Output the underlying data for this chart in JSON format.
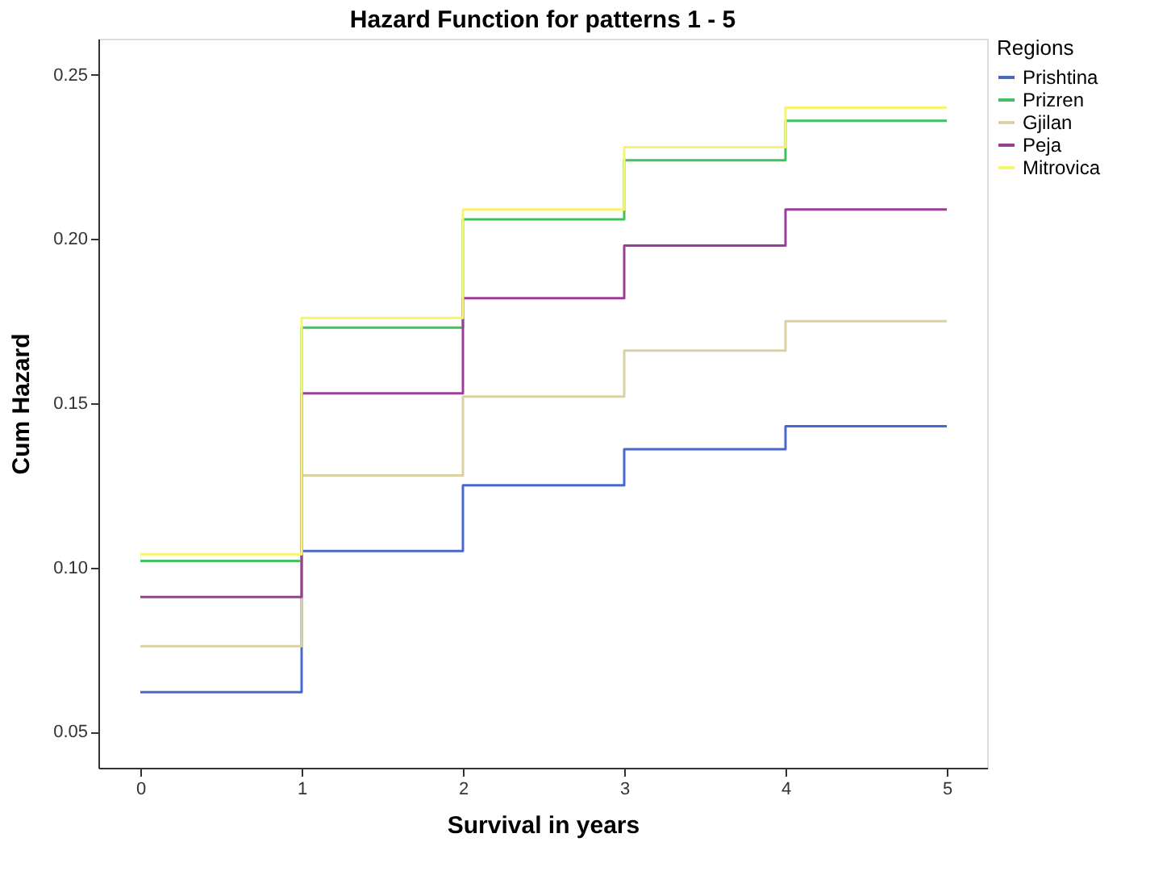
{
  "chart_data": {
    "type": "step",
    "title": "Hazard Function for patterns 1 - 5",
    "xlabel": "Survival in years",
    "ylabel": "Cum Hazard",
    "legend_title": "Regions",
    "x": [
      0,
      1,
      2,
      3,
      4,
      5
    ],
    "series": [
      {
        "name": "Prishtina",
        "color": "#4a68cc",
        "values": [
          0.062,
          0.105,
          0.125,
          0.136,
          0.143,
          0.143
        ]
      },
      {
        "name": "Prizren",
        "color": "#45c060",
        "values": [
          0.102,
          0.173,
          0.206,
          0.224,
          0.236,
          0.236
        ]
      },
      {
        "name": "Gjilan",
        "color": "#d9d3a3",
        "values": [
          0.076,
          0.128,
          0.152,
          0.166,
          0.175,
          0.175
        ]
      },
      {
        "name": "Peja",
        "color": "#9a3f98",
        "values": [
          0.091,
          0.153,
          0.182,
          0.198,
          0.209,
          0.209
        ]
      },
      {
        "name": "Mitrovica",
        "color": "#f7f56e",
        "values": [
          0.104,
          0.176,
          0.209,
          0.228,
          0.24,
          0.24
        ]
      }
    ],
    "xlim": [
      -0.26,
      5.25
    ],
    "xticks": [
      0,
      1,
      2,
      3,
      4,
      5
    ],
    "ylim": [
      0.039,
      0.261
    ],
    "yticks": [
      {
        "value": 0.05,
        "label": "0.05"
      },
      {
        "value": 0.1,
        "label": "0.10"
      },
      {
        "value": 0.15,
        "label": "0.15"
      },
      {
        "value": 0.2,
        "label": "0.20"
      },
      {
        "value": 0.25,
        "label": "0.25"
      }
    ],
    "grid": false,
    "legend": "top right",
    "line_style": "solid",
    "marker": "none"
  }
}
